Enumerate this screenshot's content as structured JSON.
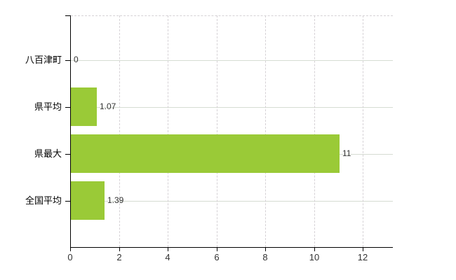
{
  "page": {
    "background": "#ffffff"
  },
  "chart_data": {
    "type": "bar",
    "orientation": "horizontal",
    "title": "",
    "xlabel": "",
    "ylabel": "",
    "categories": [
      "八百津町",
      "県平均",
      "県最大",
      "全国平均"
    ],
    "values": [
      0,
      1.07,
      11,
      1.39
    ],
    "value_labels": [
      "0",
      "1.07",
      "11",
      "1.39"
    ],
    "xticks": [
      "0",
      "2",
      "4",
      "6",
      "8",
      "10",
      "12"
    ],
    "xtick_values": [
      0,
      2,
      4,
      6,
      8,
      10,
      12
    ],
    "xlim": [
      0,
      13.2
    ],
    "grid": true,
    "grid_vertical_style": "dashed",
    "grid_horizontal_style": "solid",
    "legend": "none",
    "bar_color": "#9aca37",
    "axis_color": "#000000",
    "grid_color": "#d6d6d6",
    "category_label_color": "#000000",
    "value_label_color": "#333333",
    "tick_label_color": "#333333"
  }
}
